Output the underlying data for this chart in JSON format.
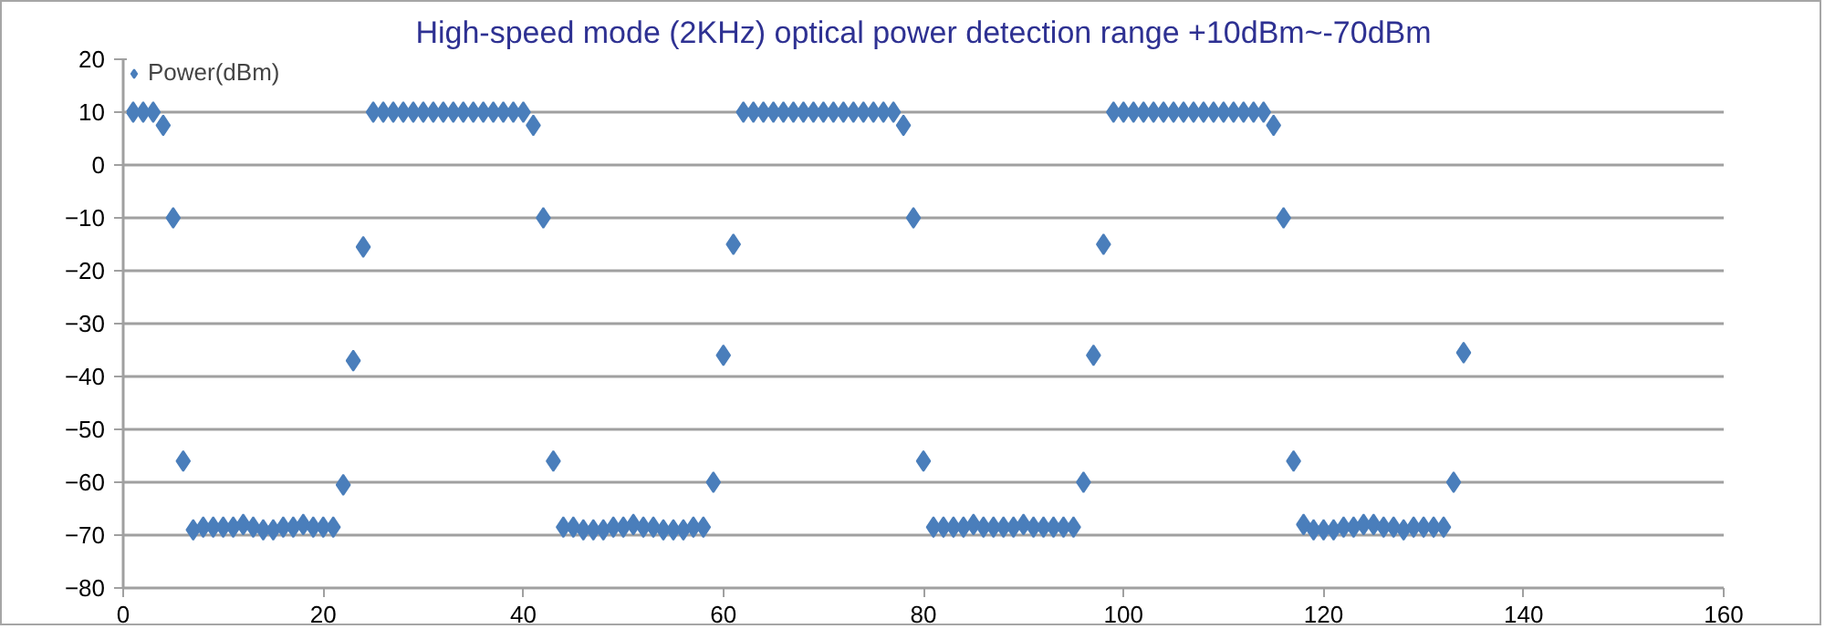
{
  "chart_data": {
    "type": "scatter",
    "title": "High-speed mode (2KHz) optical power detection range +10dBm~-70dBm",
    "x": [
      1,
      2,
      3,
      4,
      5,
      6,
      7,
      8,
      9,
      10,
      11,
      12,
      13,
      14,
      15,
      16,
      17,
      18,
      19,
      20,
      21,
      22,
      23,
      24,
      25,
      26,
      27,
      28,
      29,
      30,
      31,
      32,
      33,
      34,
      35,
      36,
      37,
      38,
      39,
      40,
      41,
      42,
      43,
      44,
      45,
      46,
      47,
      48,
      49,
      50,
      51,
      52,
      53,
      54,
      55,
      56,
      57,
      58,
      59,
      60,
      61,
      62,
      63,
      64,
      65,
      66,
      67,
      68,
      69,
      70,
      71,
      72,
      73,
      74,
      75,
      76,
      77,
      78,
      79,
      80,
      81,
      82,
      83,
      84,
      85,
      86,
      87,
      88,
      89,
      90,
      91,
      92,
      93,
      94,
      95,
      96,
      97,
      98,
      99,
      100,
      101,
      102,
      103,
      104,
      105,
      106,
      107,
      108,
      109,
      110,
      111,
      112,
      113,
      114,
      115,
      116,
      117,
      118,
      119,
      120,
      121,
      122,
      123,
      124,
      125,
      126,
      127,
      128,
      129,
      130,
      131,
      132,
      133,
      134
    ],
    "series": [
      {
        "name": "Power(dBm)",
        "color": "#4a7ebb",
        "values": [
          10,
          10,
          10,
          7.5,
          -10,
          -56,
          -69,
          -68.5,
          -68.5,
          -68.5,
          -68.5,
          -68,
          -68.5,
          -69,
          -69,
          -68.5,
          -68.5,
          -68,
          -68.5,
          -68.5,
          -68.5,
          -60.5,
          -37,
          -15.5,
          10,
          10,
          10,
          10,
          10,
          10,
          10,
          10,
          10,
          10,
          10,
          10,
          10,
          10,
          10,
          10,
          7.5,
          -10,
          -56,
          -68.5,
          -68.5,
          -69,
          -69,
          -69,
          -68.5,
          -68.5,
          -68,
          -68.5,
          -68.5,
          -69,
          -69,
          -69,
          -68.5,
          -68.5,
          -60,
          -36,
          -15,
          10,
          10,
          10,
          10,
          10,
          10,
          10,
          10,
          10,
          10,
          10,
          10,
          10,
          10,
          10,
          10,
          7.5,
          -10,
          -56,
          -68.5,
          -68.5,
          -68.5,
          -68.5,
          -68,
          -68.5,
          -68.5,
          -68.5,
          -68.5,
          -68,
          -68.5,
          -68.5,
          -68.5,
          -68.5,
          -68.5,
          -60,
          -36,
          -15,
          10,
          10,
          10,
          10,
          10,
          10,
          10,
          10,
          10,
          10,
          10,
          10,
          10,
          10,
          10,
          10,
          7.5,
          -10,
          -56,
          -68,
          -69,
          -69,
          -69,
          -68.5,
          -68.5,
          -68,
          -68,
          -68.5,
          -68.5,
          -69,
          -68.5,
          -68.5,
          -68.5,
          -68.5,
          -60,
          -35.5
        ]
      }
    ],
    "xlim": [
      0,
      160
    ],
    "ylim": [
      -80,
      20
    ],
    "xticks": [
      0,
      20,
      40,
      60,
      80,
      100,
      120,
      140,
      160
    ],
    "yticks": [
      -80,
      -70,
      -60,
      -50,
      -40,
      -30,
      -20,
      -10,
      0,
      10,
      20
    ],
    "grid": "y",
    "legend": "top left",
    "marker": "diamond"
  }
}
